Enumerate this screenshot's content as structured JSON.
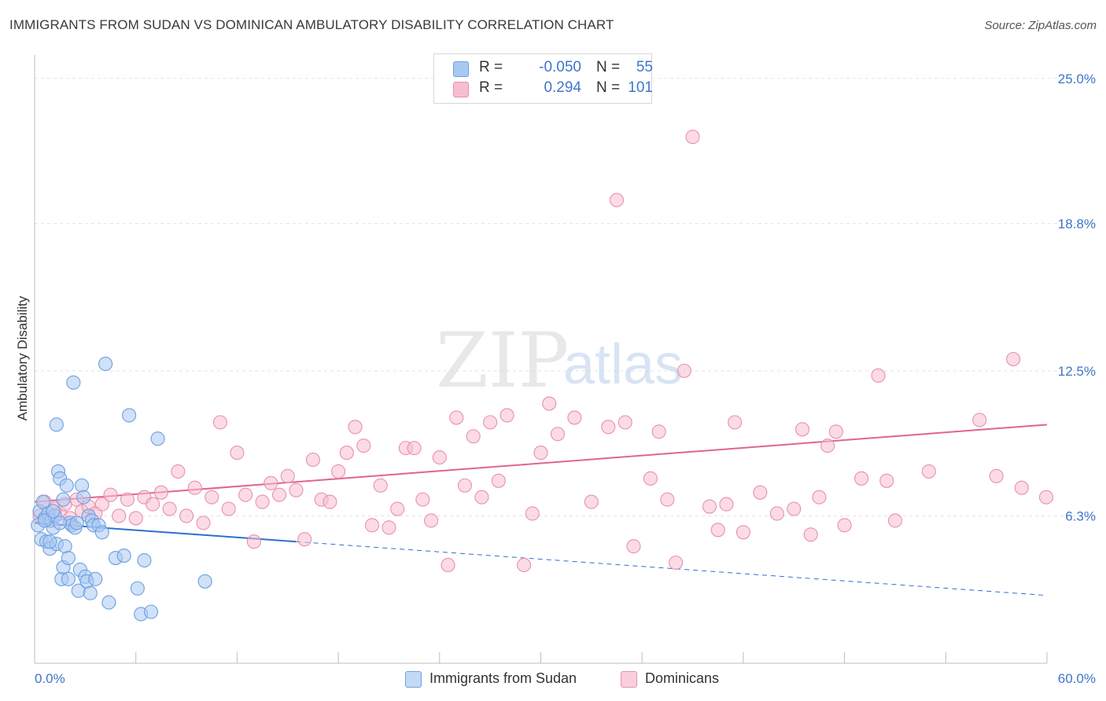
{
  "title": "IMMIGRANTS FROM SUDAN VS DOMINICAN AMBULATORY DISABILITY CORRELATION CHART",
  "source": "Source: ZipAtlas.com",
  "watermark": {
    "zip": "ZIP",
    "atlas": "atlas"
  },
  "legend": {
    "rows": [
      {
        "r_label": "R =",
        "r_value": "-0.050",
        "n_label": "N =",
        "n_value": "55",
        "color": "#a9c9f2",
        "border": "#6d9fe0"
      },
      {
        "r_label": "R =",
        "r_value": "0.294",
        "n_label": "N =",
        "n_value": "101",
        "color": "#f7bed0",
        "border": "#e890ae"
      }
    ]
  },
  "bottom_legend": [
    {
      "label": "Immigrants from Sudan",
      "color": "#c3d9f5",
      "border": "#6d9fe0"
    },
    {
      "label": "Dominicans",
      "color": "#f9cfdc",
      "border": "#e890ae"
    }
  ],
  "chart_data": {
    "type": "scatter",
    "title": "IMMIGRANTS FROM SUDAN VS DOMINICAN AMBULATORY DISABILITY CORRELATION CHART",
    "xlabel": "",
    "ylabel": "Ambulatory Disability",
    "xlim": [
      0,
      60
    ],
    "ylim": [
      0,
      26
    ],
    "x_tick_labels": [
      "0.0%",
      "60.0%"
    ],
    "y_ticks": [
      6.3,
      12.5,
      18.8,
      25.0
    ],
    "y_tick_labels": [
      "6.3%",
      "12.5%",
      "18.8%",
      "25.0%"
    ],
    "grid": true,
    "series": [
      {
        "name": "Immigrants from Sudan",
        "color": "#6d9fe0",
        "fill": "#a9c9f2",
        "trend": {
          "x0": 0,
          "y0": 6.0,
          "x1": 15.5,
          "y1": 5.2,
          "dash_to_x": 60,
          "dash_to_y": 2.9,
          "color": "#2e6fd0"
        },
        "points": [
          [
            0.2,
            5.9
          ],
          [
            0.3,
            6.5
          ],
          [
            0.4,
            5.3
          ],
          [
            0.5,
            6.9
          ],
          [
            0.6,
            6.2
          ],
          [
            0.7,
            5.2
          ],
          [
            0.8,
            6.4
          ],
          [
            0.9,
            4.9
          ],
          [
            1.0,
            6.1
          ],
          [
            1.1,
            5.8
          ],
          [
            1.2,
            6.3
          ],
          [
            1.3,
            5.1
          ],
          [
            1.4,
            8.2
          ],
          [
            1.5,
            7.9
          ],
          [
            1.6,
            3.6
          ],
          [
            1.7,
            4.1
          ],
          [
            1.8,
            5.0
          ],
          [
            1.9,
            7.6
          ],
          [
            2.0,
            4.5
          ],
          [
            2.1,
            6.0
          ],
          [
            2.2,
            5.9
          ],
          [
            2.3,
            12.0
          ],
          [
            2.4,
            5.8
          ],
          [
            2.5,
            6.0
          ],
          [
            2.6,
            3.1
          ],
          [
            2.7,
            4.0
          ],
          [
            2.8,
            7.6
          ],
          [
            2.9,
            7.1
          ],
          [
            3.0,
            3.7
          ],
          [
            3.1,
            3.5
          ],
          [
            3.2,
            6.3
          ],
          [
            3.3,
            3.0
          ],
          [
            3.4,
            6.1
          ],
          [
            3.5,
            5.9
          ],
          [
            3.6,
            3.6
          ],
          [
            3.8,
            5.9
          ],
          [
            4.0,
            5.6
          ],
          [
            4.2,
            12.8
          ],
          [
            4.4,
            2.6
          ],
          [
            4.8,
            4.5
          ],
          [
            5.3,
            4.6
          ],
          [
            5.6,
            10.6
          ],
          [
            6.1,
            3.2
          ],
          [
            6.3,
            2.1
          ],
          [
            6.5,
            4.4
          ],
          [
            6.9,
            2.2
          ],
          [
            7.3,
            9.6
          ],
          [
            10.1,
            3.5
          ],
          [
            1.3,
            10.2
          ],
          [
            0.6,
            6.1
          ],
          [
            0.9,
            5.2
          ],
          [
            1.5,
            6.0
          ],
          [
            2.0,
            3.6
          ],
          [
            1.1,
            6.5
          ],
          [
            1.7,
            7.0
          ]
        ]
      },
      {
        "name": "Dominicans",
        "color": "#e890ae",
        "fill": "#f7bed0",
        "trend": {
          "x0": 0,
          "y0": 6.9,
          "x1": 60,
          "y1": 10.2,
          "color": "#e0658e"
        },
        "points": [
          [
            0.3,
            6.3
          ],
          [
            0.6,
            6.9
          ],
          [
            0.9,
            6.1
          ],
          [
            1.2,
            6.6
          ],
          [
            1.5,
            6.4
          ],
          [
            1.8,
            6.8
          ],
          [
            2.1,
            6.2
          ],
          [
            2.5,
            7.0
          ],
          [
            2.8,
            6.5
          ],
          [
            3.2,
            6.7
          ],
          [
            3.6,
            6.4
          ],
          [
            4.0,
            6.8
          ],
          [
            4.5,
            7.2
          ],
          [
            5.0,
            6.3
          ],
          [
            5.5,
            7.0
          ],
          [
            6.0,
            6.2
          ],
          [
            6.5,
            7.1
          ],
          [
            7.0,
            6.8
          ],
          [
            7.5,
            7.3
          ],
          [
            8.0,
            6.6
          ],
          [
            8.5,
            8.2
          ],
          [
            9.0,
            6.3
          ],
          [
            9.5,
            7.5
          ],
          [
            10.0,
            6.0
          ],
          [
            10.5,
            7.1
          ],
          [
            11.0,
            10.3
          ],
          [
            11.5,
            6.6
          ],
          [
            12.0,
            9.0
          ],
          [
            12.5,
            7.2
          ],
          [
            13.0,
            5.2
          ],
          [
            13.5,
            6.9
          ],
          [
            14.0,
            7.7
          ],
          [
            14.5,
            7.2
          ],
          [
            15.0,
            8.0
          ],
          [
            15.5,
            7.4
          ],
          [
            16.0,
            5.3
          ],
          [
            16.5,
            8.7
          ],
          [
            17.0,
            7.0
          ],
          [
            17.5,
            6.9
          ],
          [
            18.0,
            8.2
          ],
          [
            18.5,
            9.0
          ],
          [
            19.0,
            10.1
          ],
          [
            19.5,
            9.3
          ],
          [
            20.0,
            5.9
          ],
          [
            20.5,
            7.6
          ],
          [
            21.0,
            5.8
          ],
          [
            21.5,
            6.6
          ],
          [
            22.0,
            9.2
          ],
          [
            22.5,
            9.2
          ],
          [
            23.0,
            7.0
          ],
          [
            23.5,
            6.1
          ],
          [
            24.0,
            8.8
          ],
          [
            24.5,
            4.2
          ],
          [
            25.0,
            10.5
          ],
          [
            25.5,
            7.6
          ],
          [
            26.0,
            9.7
          ],
          [
            26.5,
            7.1
          ],
          [
            27.0,
            10.3
          ],
          [
            27.5,
            7.8
          ],
          [
            28.0,
            10.6
          ],
          [
            29.0,
            4.2
          ],
          [
            29.5,
            6.4
          ],
          [
            30.0,
            9.0
          ],
          [
            30.5,
            11.1
          ],
          [
            31.0,
            9.8
          ],
          [
            32.0,
            10.5
          ],
          [
            33.0,
            6.9
          ],
          [
            34.0,
            10.1
          ],
          [
            34.5,
            19.8
          ],
          [
            35.0,
            10.3
          ],
          [
            35.5,
            5.0
          ],
          [
            36.5,
            7.9
          ],
          [
            37.0,
            9.9
          ],
          [
            37.5,
            7.0
          ],
          [
            38.0,
            4.3
          ],
          [
            38.5,
            12.5
          ],
          [
            39.0,
            22.5
          ],
          [
            40.0,
            6.7
          ],
          [
            40.5,
            5.7
          ],
          [
            41.0,
            6.8
          ],
          [
            41.5,
            10.3
          ],
          [
            42.0,
            5.6
          ],
          [
            45.0,
            6.6
          ],
          [
            45.5,
            10.0
          ],
          [
            46.0,
            5.5
          ],
          [
            46.5,
            7.1
          ],
          [
            47.0,
            9.3
          ],
          [
            47.5,
            9.9
          ],
          [
            49.0,
            7.9
          ],
          [
            50.0,
            12.3
          ],
          [
            50.5,
            7.8
          ],
          [
            51.0,
            6.1
          ],
          [
            53.0,
            8.2
          ],
          [
            56.0,
            10.4
          ],
          [
            57.0,
            8.0
          ],
          [
            58.0,
            13.0
          ],
          [
            58.5,
            7.5
          ],
          [
            62.5,
            7.1
          ],
          [
            43.0,
            7.3
          ],
          [
            44.0,
            6.4
          ],
          [
            48.0,
            5.9
          ]
        ]
      }
    ]
  }
}
